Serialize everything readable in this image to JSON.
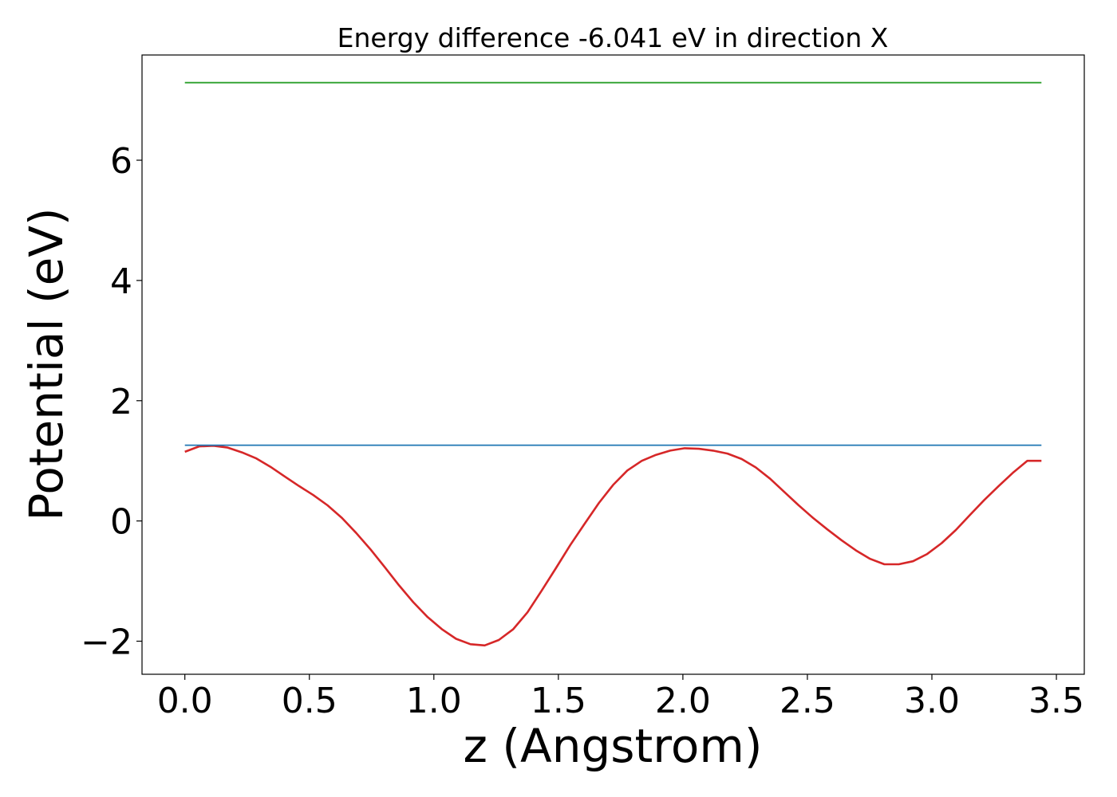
{
  "chart_data": {
    "type": "line",
    "title": "Energy difference -6.041 eV in direction X",
    "xlabel": "z (Angstrom)",
    "ylabel": "Potential (eV)",
    "xlim": [
      -0.172,
      3.612
    ],
    "ylim": [
      -2.55,
      7.75
    ],
    "xticks": [
      0.0,
      0.5,
      1.0,
      1.5,
      2.0,
      2.5,
      3.0,
      3.5
    ],
    "xtick_labels": [
      "0.0",
      "0.5",
      "1.0",
      "1.5",
      "2.0",
      "2.5",
      "3.0",
      "3.5"
    ],
    "yticks": [
      -2,
      0,
      2,
      4,
      6
    ],
    "ytick_labels": [
      "−2",
      "0",
      "2",
      "4",
      "6"
    ],
    "grid": false,
    "series": [
      {
        "color": "#d62728",
        "x": [
          0.0,
          0.057,
          0.115,
          0.172,
          0.229,
          0.287,
          0.344,
          0.401,
          0.459,
          0.516,
          0.573,
          0.631,
          0.688,
          0.745,
          0.803,
          0.86,
          0.917,
          0.975,
          1.032,
          1.089,
          1.147,
          1.204,
          1.261,
          1.319,
          1.376,
          1.433,
          1.491,
          1.548,
          1.605,
          1.663,
          1.72,
          1.777,
          1.835,
          1.892,
          1.949,
          2.007,
          2.064,
          2.121,
          2.179,
          2.236,
          2.293,
          2.351,
          2.408,
          2.465,
          2.523,
          2.58,
          2.637,
          2.695,
          2.752,
          2.809,
          2.867,
          2.924,
          2.981,
          3.039,
          3.096,
          3.153,
          3.211,
          3.268,
          3.325,
          3.383,
          3.44
        ],
        "y": [
          1.15,
          1.24,
          1.25,
          1.22,
          1.14,
          1.04,
          0.9,
          0.74,
          0.58,
          0.43,
          0.26,
          0.05,
          -0.2,
          -0.47,
          -0.77,
          -1.07,
          -1.35,
          -1.6,
          -1.8,
          -1.96,
          -2.05,
          -2.07,
          -1.98,
          -1.8,
          -1.52,
          -1.16,
          -0.78,
          -0.4,
          -0.05,
          0.3,
          0.6,
          0.84,
          1.0,
          1.1,
          1.17,
          1.21,
          1.2,
          1.17,
          1.12,
          1.03,
          0.89,
          0.7,
          0.48,
          0.26,
          0.05,
          -0.14,
          -0.32,
          -0.49,
          -0.63,
          -0.72,
          -0.72,
          -0.67,
          -0.55,
          -0.37,
          -0.15,
          0.1,
          0.35,
          0.58,
          0.8,
          1.0,
          1.0
        ]
      },
      {
        "color": "#1f77b4",
        "x": [
          0.0,
          3.44
        ],
        "y": [
          1.26,
          1.26
        ]
      },
      {
        "color": "#2ca02c",
        "x": [
          0.0,
          3.44
        ],
        "y": [
          7.29,
          7.29
        ]
      }
    ]
  }
}
